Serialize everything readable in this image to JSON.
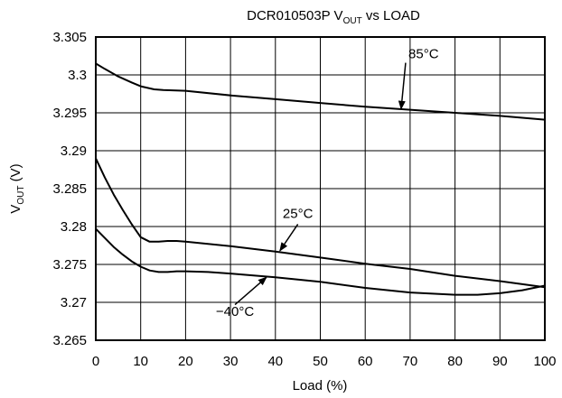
{
  "chart_data": {
    "type": "line",
    "title": {
      "main": "DCR010503P V",
      "sub": "OUT",
      "rest": " vs LOAD"
    },
    "xlabel": "Load (%)",
    "ylabel": {
      "main": "V",
      "sub": "OUT",
      "rest": " (V)"
    },
    "xlim": [
      0,
      100
    ],
    "ylim": [
      3.265,
      3.305
    ],
    "x_ticks": [
      0,
      10,
      20,
      30,
      40,
      50,
      60,
      70,
      80,
      90,
      100
    ],
    "x_tick_labels": [
      "0",
      "10",
      "20",
      "30",
      "40",
      "50",
      "60",
      "70",
      "80",
      "90",
      "100"
    ],
    "y_ticks": [
      3.305,
      3.3,
      3.295,
      3.29,
      3.285,
      3.28,
      3.275,
      3.27,
      3.265
    ],
    "y_tick_labels": [
      "3.305",
      "3.3",
      "3.295",
      "3.29",
      "3.285",
      "3.28",
      "3.275",
      "3.27",
      "3.265"
    ],
    "grid": true,
    "legend": "none",
    "series": [
      {
        "name": "85°C",
        "x": [
          0,
          2,
          5,
          8,
          10,
          13,
          15,
          20,
          30,
          40,
          50,
          60,
          70,
          80,
          90,
          100
        ],
        "y": [
          3.3015,
          3.3008,
          3.2998,
          3.299,
          3.2985,
          3.2981,
          3.298,
          3.2979,
          3.2973,
          3.2968,
          3.2963,
          3.2958,
          3.2954,
          3.295,
          3.2946,
          3.2941
        ]
      },
      {
        "name": "25°C",
        "x": [
          0,
          2,
          4,
          6,
          8,
          10,
          12,
          14,
          16,
          18,
          20,
          30,
          40,
          50,
          60,
          70,
          80,
          90,
          100
        ],
        "y": [
          3.289,
          3.2865,
          3.2842,
          3.2822,
          3.2803,
          3.2786,
          3.278,
          3.278,
          3.2781,
          3.2781,
          3.278,
          3.2774,
          3.2767,
          3.2759,
          3.2751,
          3.2744,
          3.2735,
          3.2728,
          3.272
        ]
      },
      {
        "name": "−40°C",
        "x": [
          0,
          2,
          4,
          6,
          8,
          10,
          12,
          14,
          16,
          18,
          20,
          25,
          30,
          40,
          50,
          60,
          70,
          80,
          85,
          90,
          95,
          100
        ],
        "y": [
          3.2797,
          3.2785,
          3.2773,
          3.2763,
          3.2754,
          3.2747,
          3.2742,
          3.274,
          3.274,
          3.2741,
          3.2741,
          3.274,
          3.2738,
          3.2733,
          3.2727,
          3.2719,
          3.2713,
          3.271,
          3.271,
          3.2712,
          3.2716,
          3.2722
        ]
      }
    ],
    "annotations": [
      {
        "series": "85°C",
        "label": "85°C",
        "text_x": 73,
        "text_y": 3.3028,
        "arrow_from": [
          69,
          3.3016
        ],
        "arrow_to": [
          68,
          3.2955
        ]
      },
      {
        "series": "25°C",
        "label": "25°C",
        "text_x": 45,
        "text_y": 3.2817,
        "arrow_from": [
          45,
          3.2803
        ],
        "arrow_to": [
          41,
          3.2768
        ]
      },
      {
        "series": "−40°C",
        "label": "−40°C",
        "text_x": 31,
        "text_y": 3.2688,
        "arrow_from": [
          31,
          3.2697
        ],
        "arrow_to": [
          38,
          3.2733
        ]
      }
    ]
  }
}
